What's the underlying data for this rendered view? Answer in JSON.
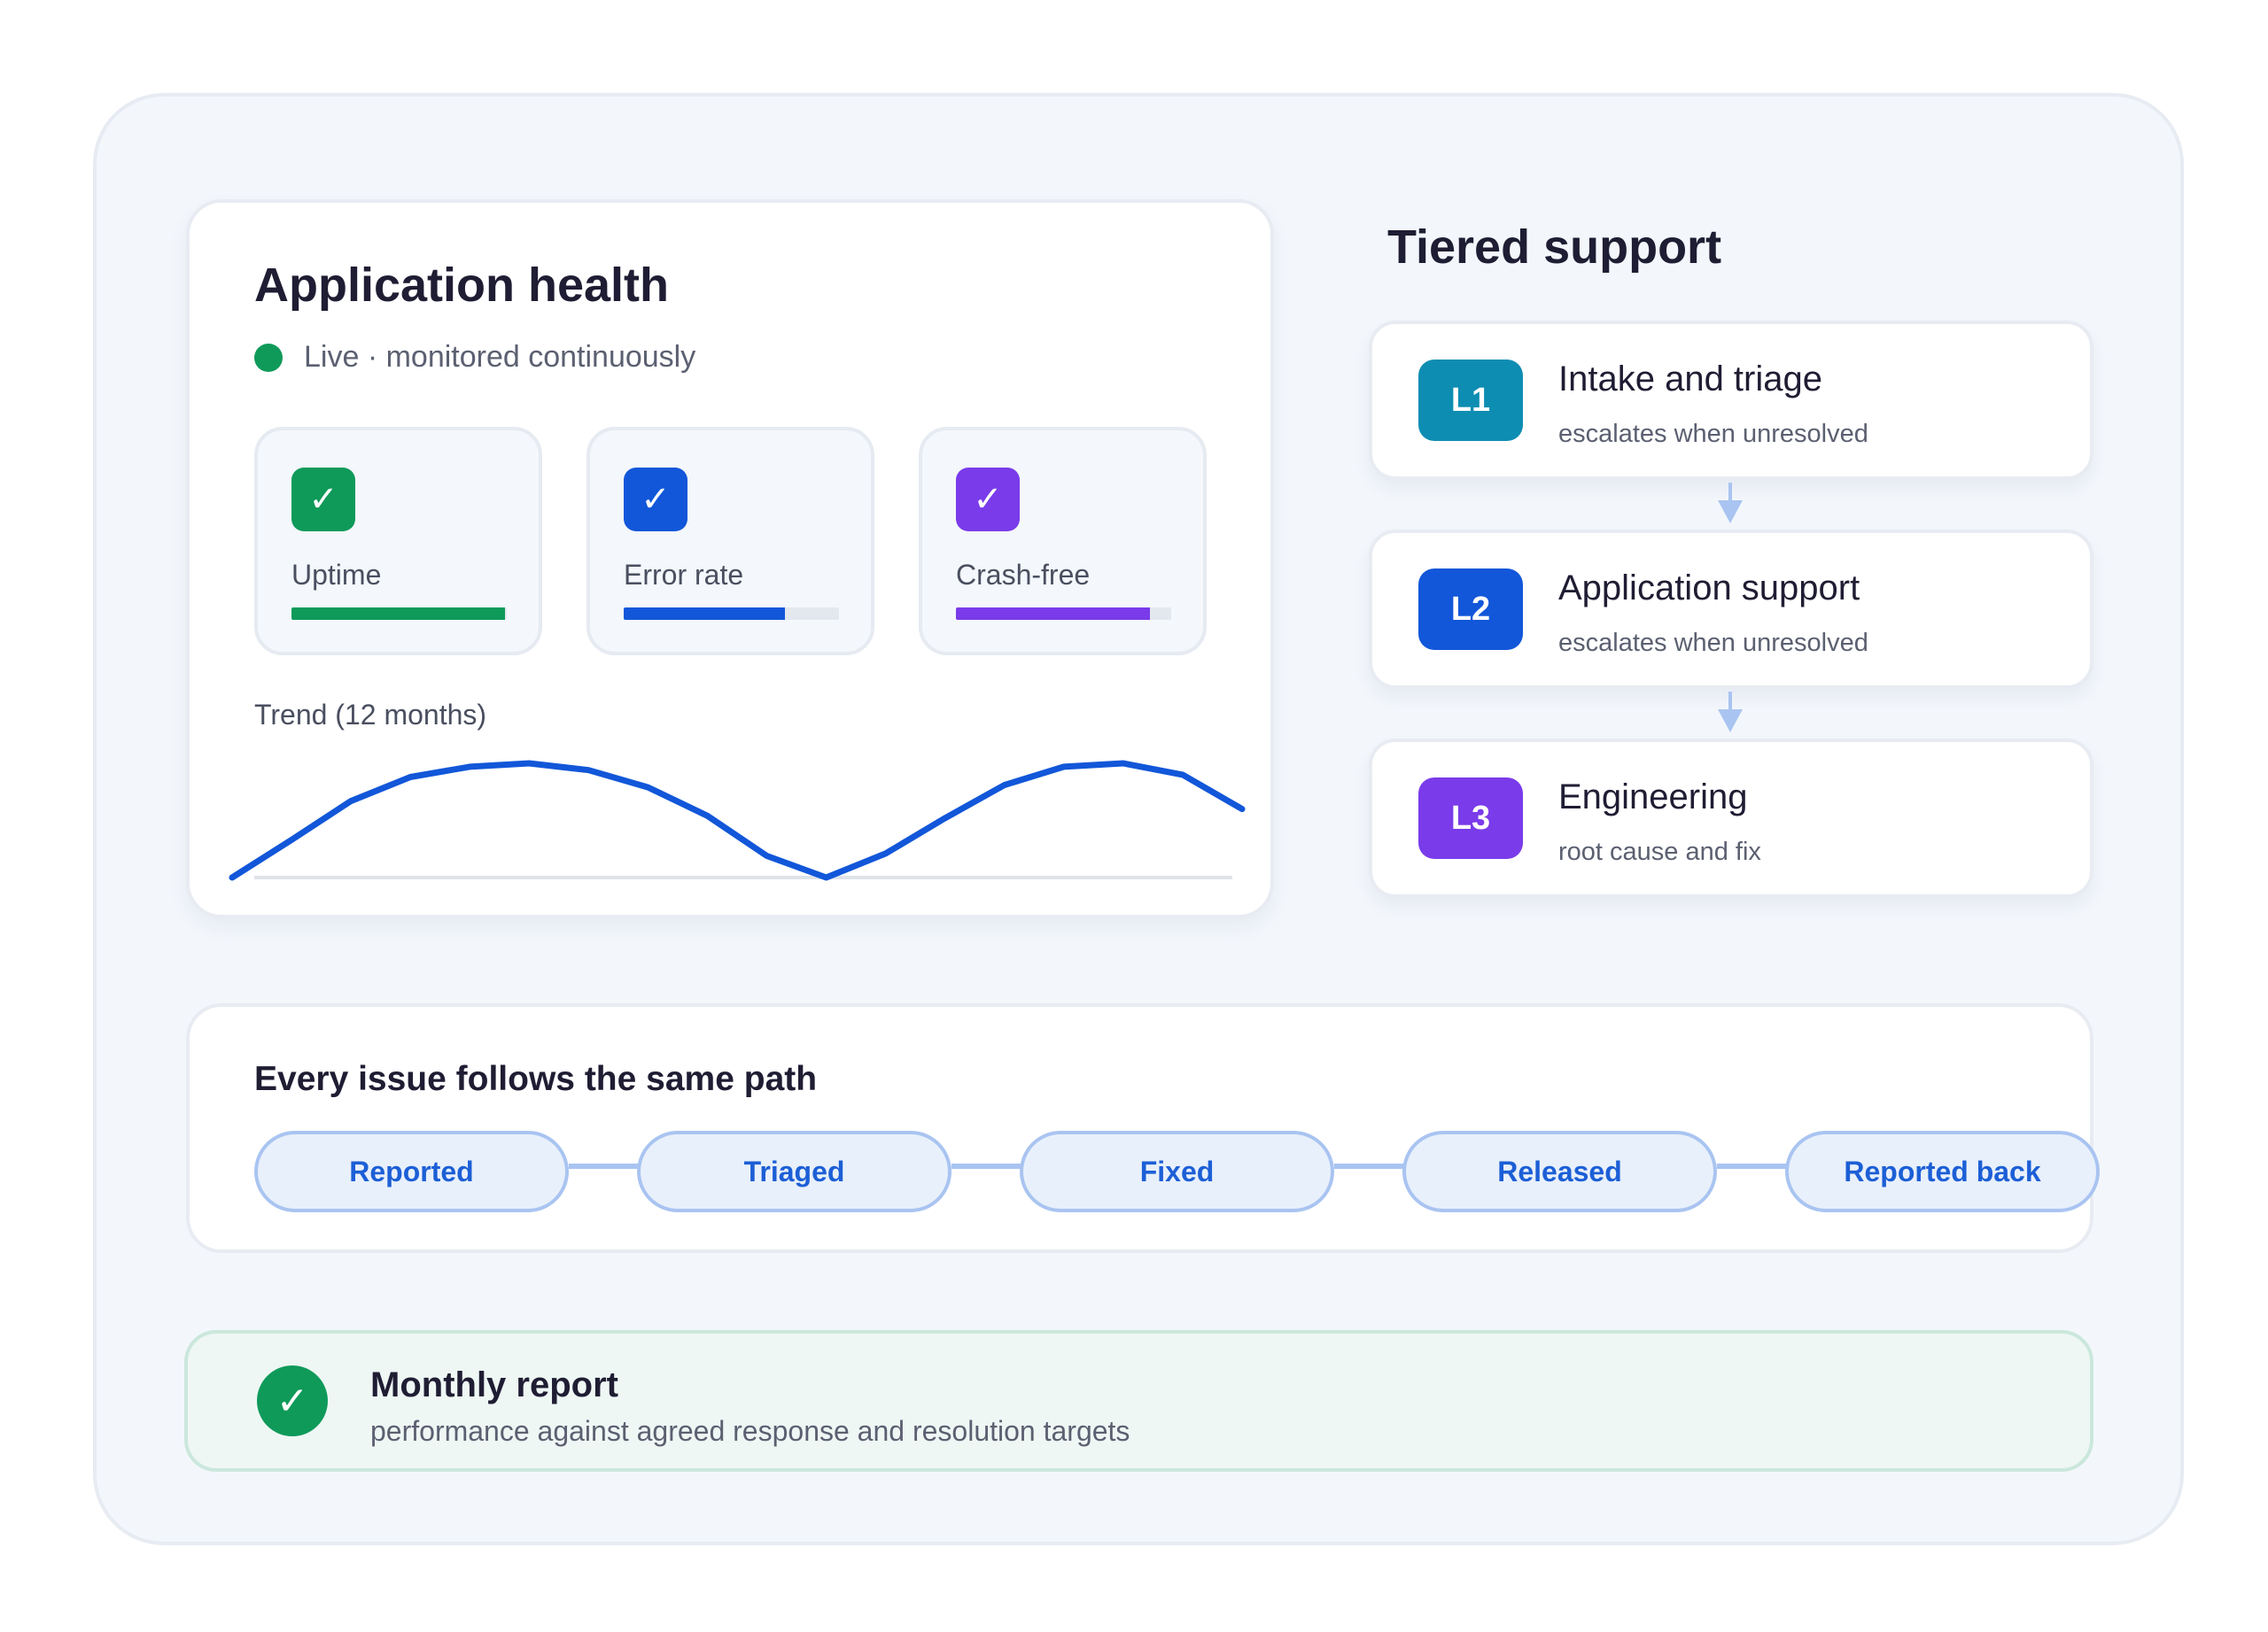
{
  "health": {
    "title": "Application health",
    "live_text": "Live · monitored continuously",
    "live_color": "#0f9a5a",
    "metrics": [
      {
        "label": "Uptime",
        "icon": "check-icon",
        "color": "#0f9a5a",
        "level_percent": 99
      },
      {
        "label": "Error rate",
        "icon": "check-icon",
        "color": "#1257d9",
        "level_percent": 75
      },
      {
        "label": "Crash-free",
        "icon": "check-icon",
        "color": "#7a3bea",
        "level_percent": 90
      }
    ],
    "trend_label": "Trend (12 months)",
    "trend_color": "#1257d9",
    "trend_values": [
      0.0,
      0.33,
      0.67,
      0.88,
      0.97,
      1.0,
      0.94,
      0.79,
      0.54,
      0.19,
      0.0,
      0.21,
      0.52,
      0.81,
      0.97,
      1.0,
      0.9,
      0.6
    ]
  },
  "tiers": {
    "title": "Tiered support",
    "items": [
      {
        "badge": "L1",
        "name": "Intake and triage",
        "sub": "escalates when unresolved",
        "color": "#0e8db3"
      },
      {
        "badge": "L2",
        "name": "Application support",
        "sub": "escalates when unresolved",
        "color": "#1257d9"
      },
      {
        "badge": "L3",
        "name": "Engineering",
        "sub": "root cause and fix",
        "color": "#7a3bea"
      }
    ]
  },
  "path": {
    "title": "Every issue follows the same path",
    "steps": [
      "Reported",
      "Triaged",
      "Fixed",
      "Released",
      "Reported back"
    ]
  },
  "report": {
    "title": "Monthly report",
    "sub": "performance against agreed response and resolution targets",
    "icon": "check-icon"
  }
}
